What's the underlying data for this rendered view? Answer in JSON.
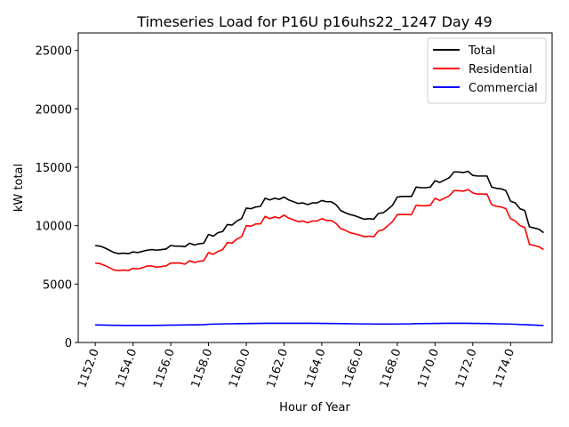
{
  "chart_data": {
    "type": "line",
    "title": "Timeseries Load for P16U p16uhs22_1247  Day 49",
    "xlabel": "Hour of Year",
    "ylabel": "kW total",
    "xlim": [
      1151.1,
      1176.2
    ],
    "ylim": [
      0,
      26500
    ],
    "xticks": [
      "1152.0",
      "1154.0",
      "1156.0",
      "1158.0",
      "1160.0",
      "1162.0",
      "1164.0",
      "1166.0",
      "1168.0",
      "1170.0",
      "1172.0",
      "1174.0"
    ],
    "xtick_values": [
      1152,
      1154,
      1156,
      1158,
      1160,
      1162,
      1164,
      1166,
      1168,
      1170,
      1172,
      1174
    ],
    "yticks": [
      "0",
      "5000",
      "10000",
      "15000",
      "20000",
      "25000"
    ],
    "ytick_values": [
      0,
      5000,
      10000,
      15000,
      20000,
      25000
    ],
    "grid": false,
    "legend_position": "top-right",
    "x_start": 1152.0,
    "x_step": 0.25,
    "series": [
      {
        "name": "Total",
        "color": "#000000",
        "values": [
          8300,
          8250,
          8100,
          7900,
          7700,
          7600,
          7650,
          7600,
          7750,
          7700,
          7800,
          7900,
          7950,
          7900,
          7950,
          8000,
          8300,
          8250,
          8250,
          8200,
          8500,
          8350,
          8450,
          8500,
          9250,
          9100,
          9400,
          9500,
          10100,
          10050,
          10400,
          10600,
          11500,
          11450,
          11600,
          11650,
          12350,
          12200,
          12350,
          12250,
          12450,
          12200,
          12050,
          11900,
          11950,
          11800,
          11950,
          11950,
          12150,
          12050,
          12050,
          11800,
          11300,
          11100,
          10950,
          10850,
          10700,
          10550,
          10600,
          10550,
          11050,
          11100,
          11400,
          11750,
          12450,
          12500,
          12500,
          12500,
          13300,
          13250,
          13250,
          13300,
          13850,
          13700,
          13900,
          14100,
          14600,
          14600,
          14550,
          14650,
          14300,
          14250,
          14250,
          14250,
          13300,
          13200,
          13150,
          13000,
          12100,
          11950,
          11450,
          11300,
          9900,
          9800,
          9700,
          9400
        ]
      },
      {
        "name": "Residential",
        "color": "#ff0000",
        "values": [
          6800,
          6750,
          6600,
          6400,
          6200,
          6150,
          6200,
          6150,
          6350,
          6300,
          6400,
          6550,
          6550,
          6450,
          6500,
          6550,
          6800,
          6800,
          6800,
          6700,
          7000,
          6850,
          6950,
          7000,
          7700,
          7550,
          7800,
          7950,
          8550,
          8500,
          8850,
          9050,
          10000,
          9950,
          10150,
          10150,
          10800,
          10600,
          10750,
          10650,
          10900,
          10650,
          10500,
          10350,
          10400,
          10250,
          10400,
          10400,
          10600,
          10450,
          10450,
          10200,
          9750,
          9600,
          9400,
          9300,
          9200,
          9050,
          9100,
          9050,
          9550,
          9650,
          10000,
          10350,
          10950,
          10950,
          10950,
          10950,
          11750,
          11700,
          11700,
          11750,
          12350,
          12150,
          12350,
          12550,
          13000,
          13000,
          12950,
          13100,
          12800,
          12700,
          12700,
          12700,
          11800,
          11650,
          11600,
          11450,
          10600,
          10400,
          10000,
          9850,
          8400,
          8300,
          8200,
          7950
        ]
      },
      {
        "name": "Commercial",
        "color": "#0000ff",
        "values": [
          1500,
          1500,
          1490,
          1480,
          1470,
          1470,
          1460,
          1460,
          1460,
          1460,
          1460,
          1460,
          1460,
          1470,
          1470,
          1480,
          1490,
          1490,
          1500,
          1500,
          1510,
          1510,
          1520,
          1530,
          1560,
          1570,
          1580,
          1590,
          1600,
          1600,
          1610,
          1610,
          1620,
          1620,
          1630,
          1630,
          1640,
          1640,
          1640,
          1640,
          1640,
          1640,
          1640,
          1640,
          1640,
          1640,
          1640,
          1640,
          1630,
          1630,
          1620,
          1620,
          1610,
          1610,
          1600,
          1600,
          1590,
          1590,
          1590,
          1580,
          1580,
          1580,
          1580,
          1580,
          1580,
          1590,
          1590,
          1600,
          1610,
          1610,
          1620,
          1620,
          1630,
          1630,
          1640,
          1640,
          1640,
          1640,
          1640,
          1640,
          1630,
          1630,
          1620,
          1620,
          1610,
          1600,
          1590,
          1580,
          1570,
          1560,
          1540,
          1530,
          1510,
          1490,
          1470,
          1460
        ]
      }
    ]
  }
}
